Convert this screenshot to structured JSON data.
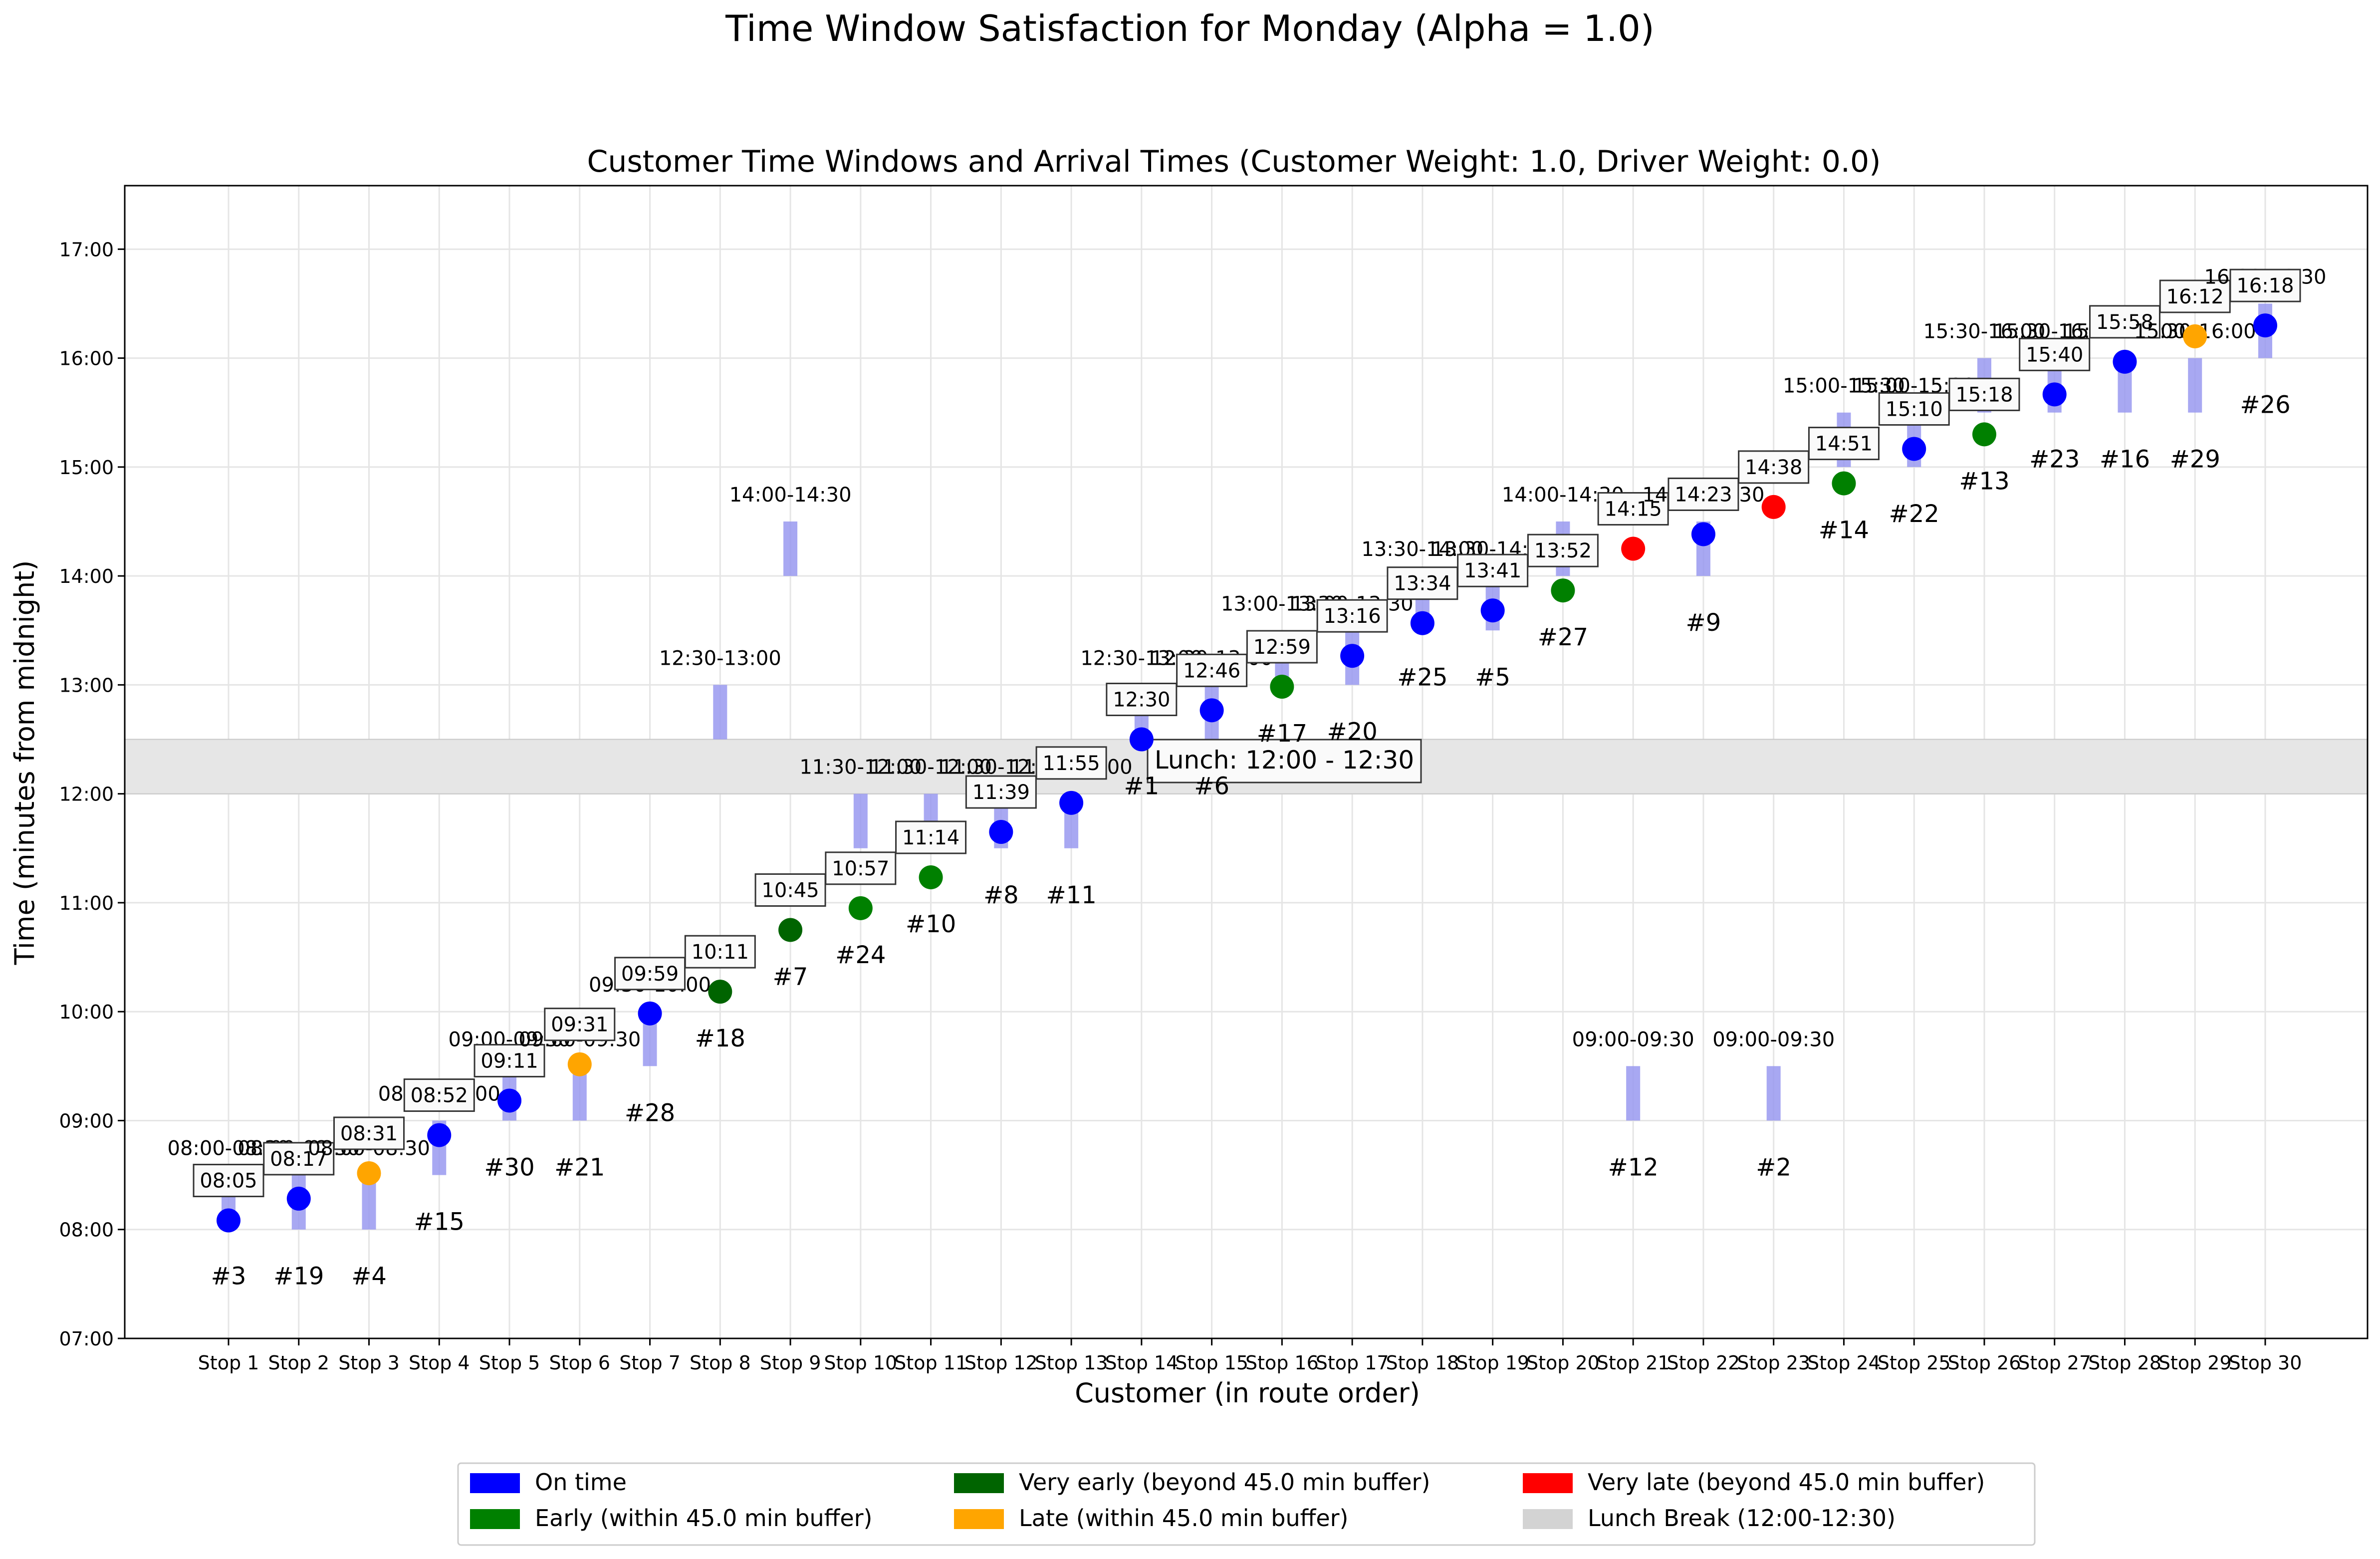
{
  "suptitle": "Time Window Satisfaction for Monday (Alpha = 1.0)",
  "chart_data": {
    "type": "scatter",
    "title": "Customer Time Windows and Arrival Times (Customer Weight: 1.0, Driver Weight: 0.0)",
    "xlabel": "Customer (in route order)",
    "ylabel": "Time (minutes from midnight)",
    "ylim": [
      420,
      1055
    ],
    "y_ticks": [
      {
        "v": 420,
        "label": "07:00"
      },
      {
        "v": 480,
        "label": "08:00"
      },
      {
        "v": 540,
        "label": "09:00"
      },
      {
        "v": 600,
        "label": "10:00"
      },
      {
        "v": 660,
        "label": "11:00"
      },
      {
        "v": 720,
        "label": "12:00"
      },
      {
        "v": 780,
        "label": "13:00"
      },
      {
        "v": 840,
        "label": "14:00"
      },
      {
        "v": 900,
        "label": "15:00"
      },
      {
        "v": 960,
        "label": "16:00"
      },
      {
        "v": 1020,
        "label": "17:00"
      }
    ],
    "grid": true,
    "lunch_break": {
      "start": 720,
      "end": 750,
      "label": "Lunch: 12:00 - 12:30"
    },
    "stops": [
      {
        "stop": "Stop 1",
        "customer": "#3",
        "window": "08:00-08:30",
        "ws": 480,
        "we": 510,
        "arrival": 485,
        "arrival_label": "08:05",
        "status": "ontime"
      },
      {
        "stop": "Stop 2",
        "customer": "#19",
        "window": "08:00-08:30",
        "ws": 480,
        "we": 510,
        "arrival": 497,
        "arrival_label": "08:17",
        "status": "ontime"
      },
      {
        "stop": "Stop 3",
        "customer": "#4",
        "window": "08:00-08:30",
        "ws": 480,
        "we": 510,
        "arrival": 511,
        "arrival_label": "08:31",
        "status": "late"
      },
      {
        "stop": "Stop 4",
        "customer": "#15",
        "window": "08:30-09:00",
        "ws": 510,
        "we": 540,
        "arrival": 532,
        "arrival_label": "08:52",
        "status": "ontime"
      },
      {
        "stop": "Stop 5",
        "customer": "#30",
        "window": "09:00-09:30",
        "ws": 540,
        "we": 570,
        "arrival": 551,
        "arrival_label": "09:11",
        "status": "ontime"
      },
      {
        "stop": "Stop 6",
        "customer": "#21",
        "window": "09:00-09:30",
        "ws": 540,
        "we": 570,
        "arrival": 571,
        "arrival_label": "09:31",
        "status": "late"
      },
      {
        "stop": "Stop 7",
        "customer": "#28",
        "window": "09:30-10:00",
        "ws": 570,
        "we": 600,
        "arrival": 599,
        "arrival_label": "09:59",
        "status": "ontime"
      },
      {
        "stop": "Stop 8",
        "customer": "#18",
        "window": "12:30-13:00",
        "ws": 750,
        "we": 780,
        "arrival": 611,
        "arrival_label": "10:11",
        "status": "veryearly"
      },
      {
        "stop": "Stop 9",
        "customer": "#7",
        "window": "14:00-14:30",
        "ws": 840,
        "we": 870,
        "arrival": 645,
        "arrival_label": "10:45",
        "status": "veryearly"
      },
      {
        "stop": "Stop 10",
        "customer": "#24",
        "window": "11:30-12:00",
        "ws": 690,
        "we": 720,
        "arrival": 657,
        "arrival_label": "10:57",
        "status": "early"
      },
      {
        "stop": "Stop 11",
        "customer": "#10",
        "window": "11:30-12:00",
        "ws": 690,
        "we": 720,
        "arrival": 674,
        "arrival_label": "11:14",
        "status": "early"
      },
      {
        "stop": "Stop 12",
        "customer": "#8",
        "window": "11:30-12:00",
        "ws": 690,
        "we": 720,
        "arrival": 699,
        "arrival_label": "11:39",
        "status": "ontime"
      },
      {
        "stop": "Stop 13",
        "customer": "#11",
        "window": "11:30-12:00",
        "ws": 690,
        "we": 720,
        "arrival": 715,
        "arrival_label": "11:55",
        "status": "ontime"
      },
      {
        "stop": "Stop 14",
        "customer": "#1",
        "window": "12:30-13:00",
        "ws": 750,
        "we": 780,
        "arrival": 750,
        "arrival_label": "12:30",
        "status": "ontime"
      },
      {
        "stop": "Stop 15",
        "customer": "#6",
        "window": "12:30-13:00",
        "ws": 750,
        "we": 780,
        "arrival": 766,
        "arrival_label": "12:46",
        "status": "ontime"
      },
      {
        "stop": "Stop 16",
        "customer": "#17",
        "window": "13:00-13:30",
        "ws": 780,
        "we": 810,
        "arrival": 779,
        "arrival_label": "12:59",
        "status": "early"
      },
      {
        "stop": "Stop 17",
        "customer": "#20",
        "window": "13:00-13:30",
        "ws": 780,
        "we": 810,
        "arrival": 796,
        "arrival_label": "13:16",
        "status": "ontime"
      },
      {
        "stop": "Stop 18",
        "customer": "#25",
        "window": "13:30-14:00",
        "ws": 810,
        "we": 840,
        "arrival": 814,
        "arrival_label": "13:34",
        "status": "ontime"
      },
      {
        "stop": "Stop 19",
        "customer": "#5",
        "window": "13:30-14:00",
        "ws": 810,
        "we": 840,
        "arrival": 821,
        "arrival_label": "13:41",
        "status": "ontime"
      },
      {
        "stop": "Stop 20",
        "customer": "#27",
        "window": "14:00-14:30",
        "ws": 840,
        "we": 870,
        "arrival": 832,
        "arrival_label": "13:52",
        "status": "early"
      },
      {
        "stop": "Stop 21",
        "customer": "#12",
        "window": "09:00-09:30",
        "ws": 540,
        "we": 570,
        "arrival": 855,
        "arrival_label": "14:15",
        "status": "verylate"
      },
      {
        "stop": "Stop 22",
        "customer": "#9",
        "window": "14:00-14:30",
        "ws": 840,
        "we": 870,
        "arrival": 863,
        "arrival_label": "14:23",
        "status": "ontime"
      },
      {
        "stop": "Stop 23",
        "customer": "#2",
        "window": "09:00-09:30",
        "ws": 540,
        "we": 570,
        "arrival": 878,
        "arrival_label": "14:38",
        "status": "verylate"
      },
      {
        "stop": "Stop 24",
        "customer": "#14",
        "window": "15:00-15:30",
        "ws": 900,
        "we": 930,
        "arrival": 891,
        "arrival_label": "14:51",
        "status": "early"
      },
      {
        "stop": "Stop 25",
        "customer": "#22",
        "window": "15:00-15:30",
        "ws": 900,
        "we": 930,
        "arrival": 910,
        "arrival_label": "15:10",
        "status": "ontime"
      },
      {
        "stop": "Stop 26",
        "customer": "#13",
        "window": "15:30-16:00",
        "ws": 930,
        "we": 960,
        "arrival": 918,
        "arrival_label": "15:18",
        "status": "early"
      },
      {
        "stop": "Stop 27",
        "customer": "#23",
        "window": "15:30-16:00",
        "ws": 930,
        "we": 960,
        "arrival": 940,
        "arrival_label": "15:40",
        "status": "ontime"
      },
      {
        "stop": "Stop 28",
        "customer": "#16",
        "window": "15:30-16:00",
        "ws": 930,
        "we": 960,
        "arrival": 958,
        "arrival_label": "15:58",
        "status": "ontime"
      },
      {
        "stop": "Stop 29",
        "customer": "#29",
        "window": "15:30-16:00",
        "ws": 930,
        "we": 960,
        "arrival": 972,
        "arrival_label": "16:12",
        "status": "late"
      },
      {
        "stop": "Stop 30",
        "customer": "#26",
        "window": "16:00-16:30",
        "ws": 960,
        "we": 990,
        "arrival": 978,
        "arrival_label": "16:18",
        "status": "ontime"
      }
    ],
    "legend": {
      "placement": "bottom-center",
      "entries": [
        {
          "key": "ontime",
          "label": "On time",
          "color": "#0000ff"
        },
        {
          "key": "early",
          "label": "Early (within 45.0 min buffer)",
          "color": "#008000"
        },
        {
          "key": "veryearly",
          "label": "Very early (beyond 45.0 min buffer)",
          "color": "#006400"
        },
        {
          "key": "late",
          "label": "Late (within 45.0 min buffer)",
          "color": "#ffa500"
        },
        {
          "key": "verylate",
          "label": "Very late (beyond 45.0 min buffer)",
          "color": "#ff0000"
        },
        {
          "key": "lunch",
          "label": "Lunch Break (12:00-12:30)",
          "color": "#d3d3d3"
        }
      ]
    },
    "colors": {
      "window_bar": "#9999f0",
      "lunch_band": "#e6e6e6",
      "grid": "#e5e5e5"
    }
  }
}
